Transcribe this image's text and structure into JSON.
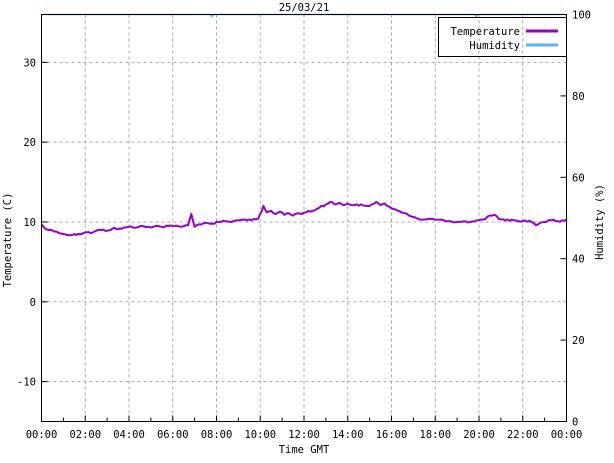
{
  "title": "25/03/21",
  "axes": {
    "x": {
      "label": "Time GMT",
      "tick_hours": [
        0,
        2,
        4,
        6,
        8,
        10,
        12,
        14,
        16,
        18,
        20,
        22,
        24
      ],
      "tick_labels": [
        "00:00",
        "02:00",
        "04:00",
        "06:00",
        "08:00",
        "10:00",
        "12:00",
        "14:00",
        "16:00",
        "18:00",
        "20:00",
        "22:00",
        "00:00"
      ],
      "range_hours": [
        0,
        24
      ]
    },
    "y_left": {
      "label": "Temperature (C)",
      "ticks": [
        -10,
        0,
        10,
        20,
        30
      ],
      "range": [
        -15,
        36
      ]
    },
    "y_right": {
      "label": "Humidity (%)",
      "ticks": [
        0,
        20,
        40,
        60,
        80,
        100
      ],
      "range": [
        0,
        100
      ]
    }
  },
  "legend": {
    "position": "top-right",
    "boxed": true,
    "items": [
      {
        "label": "Temperature",
        "color": "#9400d3"
      },
      {
        "label": "Humidity",
        "color": "#58b6e8"
      }
    ]
  },
  "colors": {
    "background": "#ffffff",
    "border": "#000000",
    "grid": "#a6a6a6",
    "temperature": "#9400d3",
    "humidity": "#58b6e8"
  },
  "chart_data": {
    "type": "line",
    "title": "25/03/21",
    "xlabel": "Time GMT",
    "ylabel_left": "Temperature (C)",
    "ylabel_right": "Humidity (%)",
    "x_range_hours": [
      0,
      24
    ],
    "temp_range": [
      -15,
      36
    ],
    "humidity_range": [
      0,
      100
    ],
    "grid": true,
    "noise_amplitude": 0.12,
    "series": [
      {
        "name": "Temperature",
        "axis": "left",
        "color": "#9400d3",
        "points": [
          [
            0,
            9.7
          ],
          [
            0.15,
            9.2
          ],
          [
            0.35,
            9.0
          ],
          [
            0.6,
            8.8
          ],
          [
            0.8,
            8.6
          ],
          [
            1.0,
            8.5
          ],
          [
            1.25,
            8.35
          ],
          [
            1.5,
            8.5
          ],
          [
            1.75,
            8.45
          ],
          [
            2.0,
            8.7
          ],
          [
            2.25,
            8.6
          ],
          [
            2.5,
            8.9
          ],
          [
            2.75,
            9.0
          ],
          [
            3.0,
            8.9
          ],
          [
            3.25,
            9.2
          ],
          [
            3.5,
            9.1
          ],
          [
            3.75,
            9.3
          ],
          [
            4.0,
            9.4
          ],
          [
            4.3,
            9.3
          ],
          [
            4.6,
            9.5
          ],
          [
            4.9,
            9.4
          ],
          [
            5.2,
            9.5
          ],
          [
            5.5,
            9.4
          ],
          [
            5.8,
            9.5
          ],
          [
            6.1,
            9.5
          ],
          [
            6.4,
            9.4
          ],
          [
            6.7,
            9.6
          ],
          [
            6.85,
            11.0
          ],
          [
            7.0,
            9.4
          ],
          [
            7.2,
            9.7
          ],
          [
            7.5,
            9.9
          ],
          [
            7.8,
            9.8
          ],
          [
            8.1,
            10.0
          ],
          [
            8.4,
            10.1
          ],
          [
            8.7,
            10.0
          ],
          [
            9.0,
            10.2
          ],
          [
            9.3,
            10.3
          ],
          [
            9.6,
            10.2
          ],
          [
            9.9,
            10.4
          ],
          [
            10.15,
            12.0
          ],
          [
            10.3,
            11.2
          ],
          [
            10.5,
            11.4
          ],
          [
            10.7,
            11.0
          ],
          [
            10.9,
            11.3
          ],
          [
            11.1,
            10.9
          ],
          [
            11.3,
            11.1
          ],
          [
            11.5,
            10.8
          ],
          [
            11.7,
            11.1
          ],
          [
            11.9,
            11.0
          ],
          [
            12.1,
            11.2
          ],
          [
            12.4,
            11.4
          ],
          [
            12.7,
            11.8
          ],
          [
            13.0,
            12.2
          ],
          [
            13.2,
            12.5
          ],
          [
            13.4,
            12.2
          ],
          [
            13.6,
            12.4
          ],
          [
            13.8,
            12.1
          ],
          [
            14.0,
            12.3
          ],
          [
            14.3,
            12.1
          ],
          [
            14.6,
            12.2
          ],
          [
            14.9,
            12.0
          ],
          [
            15.1,
            12.2
          ],
          [
            15.3,
            12.5
          ],
          [
            15.5,
            12.1
          ],
          [
            15.7,
            12.3
          ],
          [
            16.0,
            11.7
          ],
          [
            16.3,
            11.4
          ],
          [
            16.6,
            11.1
          ],
          [
            16.9,
            10.7
          ],
          [
            17.2,
            10.4
          ],
          [
            17.5,
            10.3
          ],
          [
            17.8,
            10.4
          ],
          [
            18.1,
            10.3
          ],
          [
            18.4,
            10.2
          ],
          [
            18.7,
            10.1
          ],
          [
            19.0,
            10.0
          ],
          [
            19.3,
            10.1
          ],
          [
            19.6,
            10.0
          ],
          [
            19.9,
            10.2
          ],
          [
            20.2,
            10.3
          ],
          [
            20.5,
            10.8
          ],
          [
            20.7,
            10.9
          ],
          [
            20.9,
            10.4
          ],
          [
            21.2,
            10.2
          ],
          [
            21.5,
            10.3
          ],
          [
            21.8,
            10.1
          ],
          [
            22.1,
            10.2
          ],
          [
            22.4,
            10.0
          ],
          [
            22.6,
            9.6
          ],
          [
            22.8,
            9.9
          ],
          [
            23.0,
            10.0
          ],
          [
            23.3,
            10.2
          ],
          [
            23.6,
            10.1
          ],
          [
            23.8,
            10.2
          ],
          [
            24,
            10.3
          ]
        ]
      },
      {
        "name": "Humidity",
        "axis": "right",
        "color": "#58b6e8",
        "points": [
          [
            0,
            100
          ],
          [
            7.7,
            100
          ],
          [
            7.78,
            99.5
          ],
          [
            7.86,
            100
          ],
          [
            19.8,
            100
          ],
          [
            19.88,
            99.5
          ],
          [
            19.96,
            100
          ],
          [
            24,
            100
          ]
        ]
      }
    ]
  }
}
